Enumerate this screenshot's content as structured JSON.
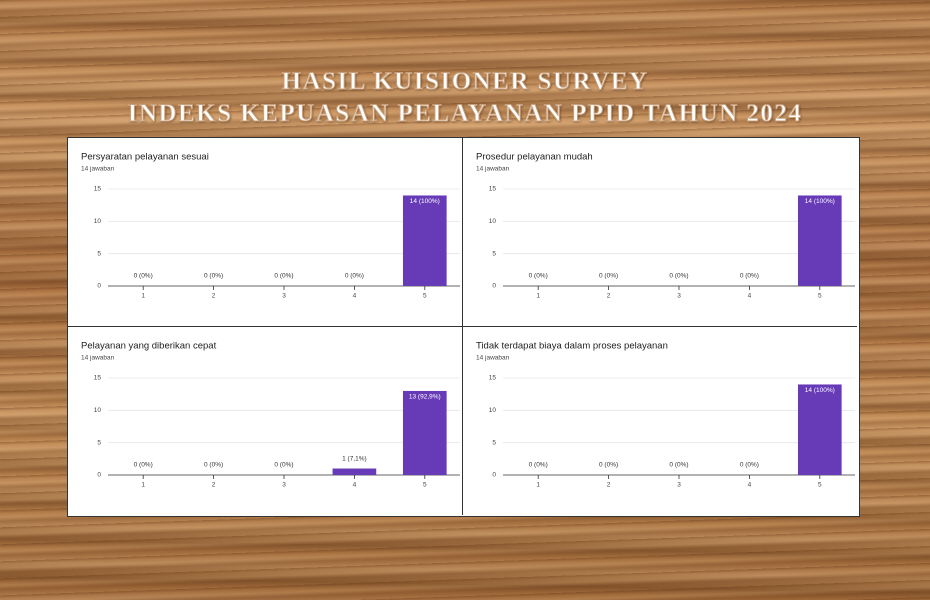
{
  "header": {
    "title": [
      "HASIL KUISIONER SURVEY",
      "INDEKS KEPUASAN PELAYANAN PPID TAHUN 2024"
    ]
  },
  "chart_data": [
    {
      "type": "bar",
      "title": "Persyaratan pelayanan sesuai",
      "subtitle": "14 jawaban",
      "categories": [
        "1",
        "2",
        "3",
        "4",
        "5"
      ],
      "values": [
        0,
        0,
        0,
        0,
        14
      ],
      "value_labels": [
        "0 (0%)",
        "0 (0%)",
        "0 (0%)",
        "0 (0%)",
        "14 (100%)"
      ],
      "color": "#673ab7",
      "ylim": [
        0,
        15
      ],
      "yticks": [
        0,
        5,
        10,
        15
      ],
      "grid": true
    },
    {
      "type": "bar",
      "title": "Prosedur pelayanan mudah",
      "subtitle": "14 jawaban",
      "categories": [
        "1",
        "2",
        "3",
        "4",
        "5"
      ],
      "values": [
        0,
        0,
        0,
        0,
        14
      ],
      "value_labels": [
        "0 (0%)",
        "0 (0%)",
        "0 (0%)",
        "0 (0%)",
        "14 (100%)"
      ],
      "color": "#673ab7",
      "ylim": [
        0,
        15
      ],
      "yticks": [
        0,
        5,
        10,
        15
      ],
      "grid": true
    },
    {
      "type": "bar",
      "title": "Pelayanan yang diberikan cepat",
      "subtitle": "14 jawaban",
      "categories": [
        "1",
        "2",
        "3",
        "4",
        "5"
      ],
      "values": [
        0,
        0,
        0,
        1,
        13
      ],
      "value_labels": [
        "0 (0%)",
        "0 (0%)",
        "0 (0%)",
        "1 (7,1%)",
        "13 (92,9%)"
      ],
      "color": "#673ab7",
      "ylim": [
        0,
        15
      ],
      "yticks": [
        0,
        5,
        10,
        15
      ],
      "grid": true
    },
    {
      "type": "bar",
      "title": "Tidak terdapat biaya dalam proses pelayanan",
      "subtitle": "14 jawaban",
      "categories": [
        "1",
        "2",
        "3",
        "4",
        "5"
      ],
      "values": [
        0,
        0,
        0,
        0,
        14
      ],
      "value_labels": [
        "0 (0%)",
        "0 (0%)",
        "0 (0%)",
        "0 (0%)",
        "14 (100%)"
      ],
      "color": "#673ab7",
      "ylim": [
        0,
        15
      ],
      "yticks": [
        0,
        5,
        10,
        15
      ],
      "grid": true
    }
  ]
}
